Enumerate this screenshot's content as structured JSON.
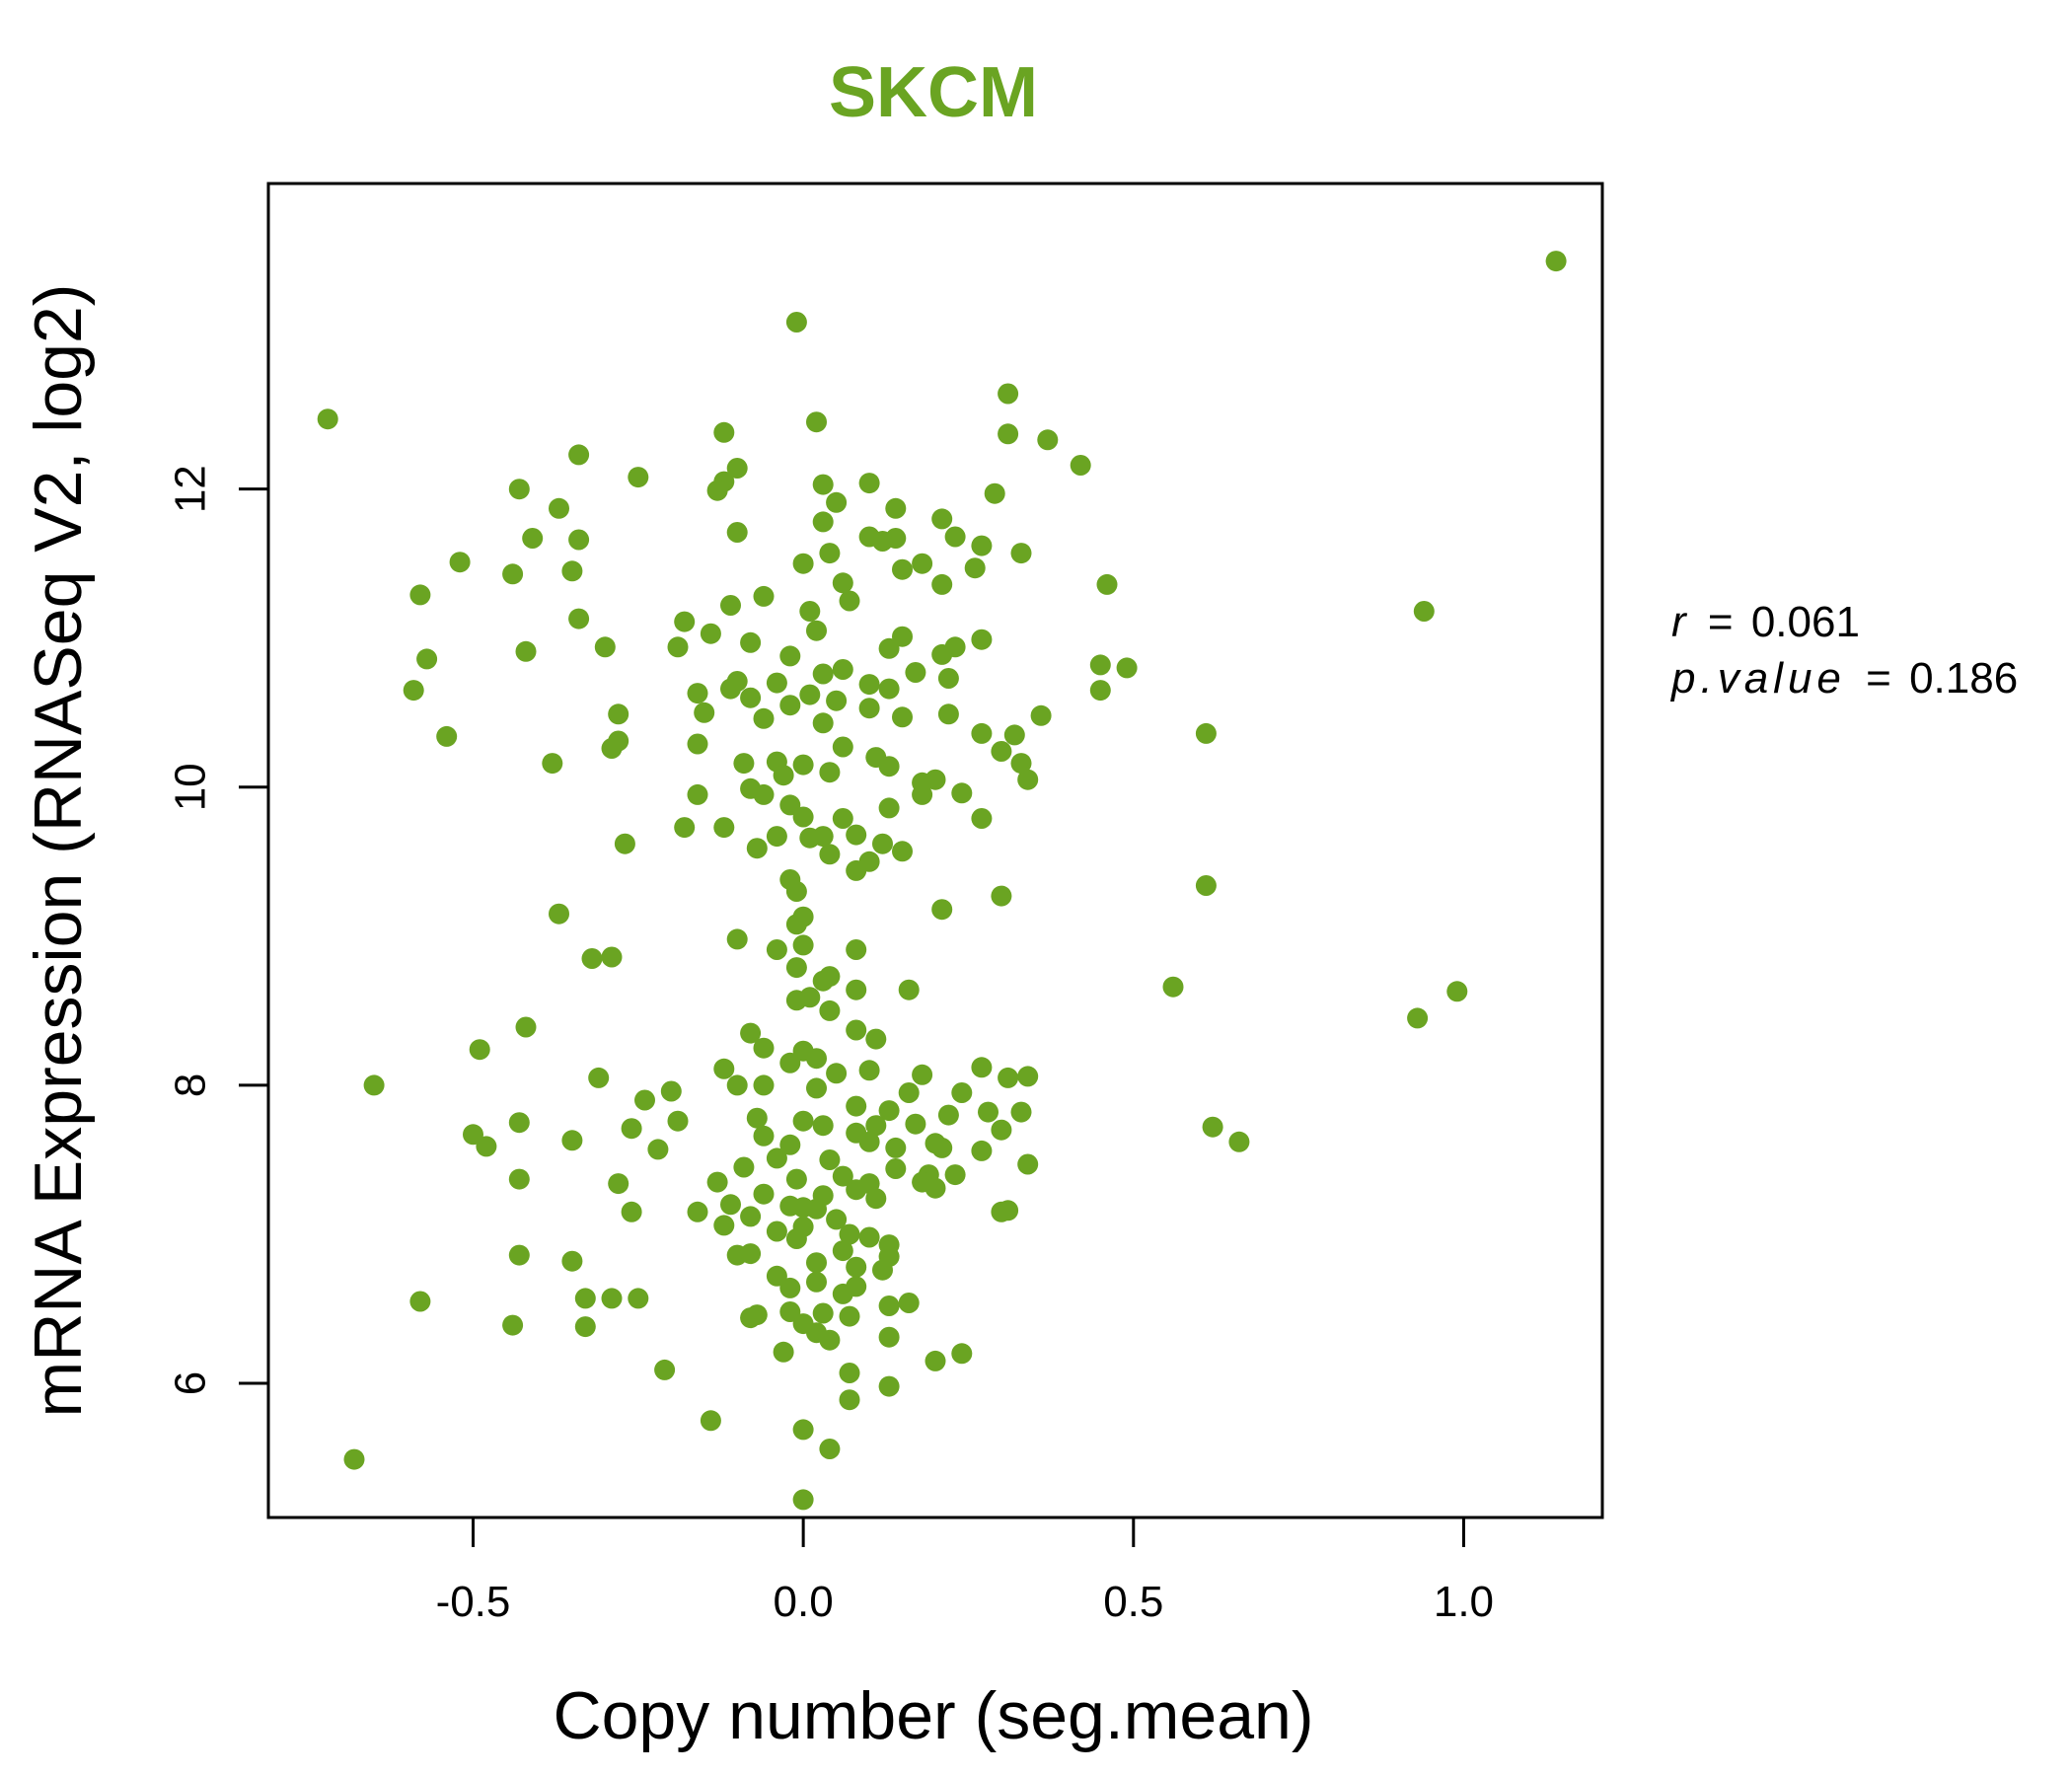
{
  "chart_data": {
    "type": "scatter",
    "title": "SKCM",
    "xlabel": "Copy number (seg.mean)",
    "ylabel": "mRNA Expression (RNASeq V2, log2)",
    "xlim": [
      -0.81,
      1.21
    ],
    "ylim": [
      5.1,
      14.05
    ],
    "xticks": [
      -0.5,
      0.0,
      0.5,
      1.0
    ],
    "xtick_labels": [
      "-0.5",
      "0.0",
      "0.5",
      "1.0"
    ],
    "yticks": [
      6,
      8,
      10,
      12
    ],
    "ytick_labels": [
      "6",
      "8",
      "10",
      "12"
    ],
    "grid": false,
    "legend": "none",
    "color": "#6aa422",
    "annotations": {
      "r_label": "r",
      "r_value": "0.061",
      "p_label": "p.value",
      "p_value": "0.186",
      "equals": "="
    },
    "points": [
      [
        1.14,
        13.53
      ],
      [
        -0.01,
        13.12
      ],
      [
        0.31,
        12.64
      ],
      [
        -0.72,
        12.47
      ],
      [
        0.02,
        12.45
      ],
      [
        -0.12,
        12.38
      ],
      [
        0.31,
        12.37
      ],
      [
        0.37,
        12.33
      ],
      [
        -0.34,
        12.23
      ],
      [
        0.42,
        12.16
      ],
      [
        -0.1,
        12.14
      ],
      [
        -0.25,
        12.08
      ],
      [
        -0.12,
        12.05
      ],
      [
        0.1,
        12.04
      ],
      [
        0.03,
        12.03
      ],
      [
        -0.43,
        12.0
      ],
      [
        -0.13,
        11.99
      ],
      [
        0.29,
        11.97
      ],
      [
        0.05,
        11.91
      ],
      [
        -0.37,
        11.87
      ],
      [
        0.14,
        11.87
      ],
      [
        0.21,
        11.8
      ],
      [
        0.03,
        11.78
      ],
      [
        -0.1,
        11.71
      ],
      [
        0.23,
        11.68
      ],
      [
        0.1,
        11.68
      ],
      [
        -0.41,
        11.67
      ],
      [
        0.14,
        11.67
      ],
      [
        0.12,
        11.65
      ],
      [
        -0.34,
        11.66
      ],
      [
        0.27,
        11.62
      ],
      [
        0.33,
        11.57
      ],
      [
        0.04,
        11.57
      ],
      [
        -0.52,
        11.51
      ],
      [
        0.0,
        11.5
      ],
      [
        0.18,
        11.5
      ],
      [
        0.15,
        11.46
      ],
      [
        0.26,
        11.47
      ],
      [
        -0.35,
        11.45
      ],
      [
        -0.44,
        11.43
      ],
      [
        0.06,
        11.37
      ],
      [
        0.21,
        11.36
      ],
      [
        0.46,
        11.36
      ],
      [
        -0.58,
        11.29
      ],
      [
        -0.06,
        11.28
      ],
      [
        0.07,
        11.25
      ],
      [
        -0.11,
        11.22
      ],
      [
        0.01,
        11.18
      ],
      [
        0.94,
        11.18
      ],
      [
        -0.34,
        11.13
      ],
      [
        -0.18,
        11.11
      ],
      [
        0.02,
        11.05
      ],
      [
        -0.14,
        11.03
      ],
      [
        0.15,
        11.01
      ],
      [
        -0.08,
        10.97
      ],
      [
        0.27,
        10.99
      ],
      [
        0.23,
        10.94
      ],
      [
        -0.19,
        10.94
      ],
      [
        -0.3,
        10.94
      ],
      [
        -0.42,
        10.91
      ],
      [
        0.13,
        10.93
      ],
      [
        0.21,
        10.89
      ],
      [
        -0.57,
        10.86
      ],
      [
        -0.02,
        10.88
      ],
      [
        0.45,
        10.82
      ],
      [
        0.49,
        10.8
      ],
      [
        0.17,
        10.77
      ],
      [
        0.06,
        10.79
      ],
      [
        0.03,
        10.76
      ],
      [
        0.22,
        10.73
      ],
      [
        -0.1,
        10.71
      ],
      [
        -0.04,
        10.7
      ],
      [
        0.1,
        10.69
      ],
      [
        -0.11,
        10.66
      ],
      [
        0.13,
        10.66
      ],
      [
        -0.59,
        10.65
      ],
      [
        0.45,
        10.65
      ],
      [
        -0.16,
        10.63
      ],
      [
        0.01,
        10.62
      ],
      [
        -0.08,
        10.6
      ],
      [
        0.05,
        10.58
      ],
      [
        -0.02,
        10.55
      ],
      [
        0.1,
        10.53
      ],
      [
        -0.15,
        10.5
      ],
      [
        0.22,
        10.49
      ],
      [
        -0.28,
        10.49
      ],
      [
        0.36,
        10.48
      ],
      [
        0.15,
        10.47
      ],
      [
        -0.06,
        10.46
      ],
      [
        0.03,
        10.43
      ],
      [
        0.27,
        10.36
      ],
      [
        -0.54,
        10.34
      ],
      [
        0.61,
        10.36
      ],
      [
        0.32,
        10.35
      ],
      [
        -0.28,
        10.31
      ],
      [
        -0.16,
        10.29
      ],
      [
        0.06,
        10.27
      ],
      [
        -0.29,
        10.26
      ],
      [
        0.3,
        10.24
      ],
      [
        0.11,
        10.2
      ],
      [
        -0.04,
        10.17
      ],
      [
        -0.38,
        10.16
      ],
      [
        -0.09,
        10.16
      ],
      [
        0.33,
        10.16
      ],
      [
        0.0,
        10.15
      ],
      [
        0.13,
        10.14
      ],
      [
        0.04,
        10.1
      ],
      [
        0.2,
        10.05
      ],
      [
        0.34,
        10.05
      ],
      [
        0.18,
        10.03
      ],
      [
        -0.03,
        10.08
      ],
      [
        -0.08,
        9.99
      ],
      [
        0.24,
        9.96
      ],
      [
        -0.16,
        9.95
      ],
      [
        0.18,
        9.95
      ],
      [
        -0.06,
        9.95
      ],
      [
        -0.02,
        9.88
      ],
      [
        0.13,
        9.86
      ],
      [
        0.0,
        9.8
      ],
      [
        0.06,
        9.79
      ],
      [
        0.27,
        9.79
      ],
      [
        -0.18,
        9.73
      ],
      [
        -0.12,
        9.73
      ],
      [
        0.08,
        9.68
      ],
      [
        -0.04,
        9.67
      ],
      [
        0.01,
        9.66
      ],
      [
        0.03,
        9.67
      ],
      [
        -0.27,
        9.62
      ],
      [
        0.12,
        9.62
      ],
      [
        -0.07,
        9.59
      ],
      [
        0.15,
        9.57
      ],
      [
        0.04,
        9.55
      ],
      [
        0.1,
        9.5
      ],
      [
        0.08,
        9.44
      ],
      [
        -0.02,
        9.38
      ],
      [
        0.61,
        9.34
      ],
      [
        -0.01,
        9.3
      ],
      [
        0.3,
        9.27
      ],
      [
        0.21,
        9.18
      ],
      [
        -0.37,
        9.15
      ],
      [
        0.0,
        9.13
      ],
      [
        -0.01,
        9.08
      ],
      [
        -0.1,
        8.98
      ],
      [
        0.0,
        8.94
      ],
      [
        -0.04,
        8.91
      ],
      [
        0.08,
        8.91
      ],
      [
        -0.29,
        8.86
      ],
      [
        -0.32,
        8.85
      ],
      [
        -0.01,
        8.79
      ],
      [
        0.04,
        8.73
      ],
      [
        0.56,
        8.66
      ],
      [
        0.03,
        8.7
      ],
      [
        0.16,
        8.64
      ],
      [
        0.08,
        8.64
      ],
      [
        0.99,
        8.63
      ],
      [
        0.01,
        8.59
      ],
      [
        -0.01,
        8.57
      ],
      [
        0.04,
        8.5
      ],
      [
        0.93,
        8.45
      ],
      [
        -0.42,
        8.39
      ],
      [
        0.08,
        8.37
      ],
      [
        -0.08,
        8.35
      ],
      [
        0.11,
        8.31
      ],
      [
        -0.06,
        8.25
      ],
      [
        -0.49,
        8.24
      ],
      [
        0.0,
        8.23
      ],
      [
        0.02,
        8.18
      ],
      [
        -0.02,
        8.15
      ],
      [
        0.27,
        8.12
      ],
      [
        -0.12,
        8.11
      ],
      [
        0.1,
        8.1
      ],
      [
        0.05,
        8.08
      ],
      [
        0.18,
        8.07
      ],
      [
        0.34,
        8.06
      ],
      [
        0.31,
        8.05
      ],
      [
        -0.31,
        8.05
      ],
      [
        -0.65,
        8.0
      ],
      [
        -0.1,
        8.0
      ],
      [
        -0.06,
        8.0
      ],
      [
        0.02,
        7.98
      ],
      [
        -0.2,
        7.96
      ],
      [
        0.16,
        7.95
      ],
      [
        0.24,
        7.95
      ],
      [
        -0.24,
        7.9
      ],
      [
        0.08,
        7.86
      ],
      [
        0.13,
        7.83
      ],
      [
        0.28,
        7.82
      ],
      [
        0.33,
        7.82
      ],
      [
        0.22,
        7.8
      ],
      [
        -0.07,
        7.78
      ],
      [
        -0.19,
        7.76
      ],
      [
        0.0,
        7.76
      ],
      [
        -0.43,
        7.75
      ],
      [
        0.17,
        7.74
      ],
      [
        0.11,
        7.73
      ],
      [
        0.03,
        7.73
      ],
      [
        -0.26,
        7.71
      ],
      [
        0.3,
        7.7
      ],
      [
        0.08,
        7.68
      ],
      [
        -0.5,
        7.67
      ],
      [
        -0.06,
        7.66
      ],
      [
        -0.35,
        7.63
      ],
      [
        0.66,
        7.62
      ],
      [
        0.62,
        7.72
      ],
      [
        0.2,
        7.61
      ],
      [
        0.1,
        7.62
      ],
      [
        -0.02,
        7.6
      ],
      [
        0.27,
        7.56
      ],
      [
        -0.48,
        7.59
      ],
      [
        0.14,
        7.58
      ],
      [
        -0.22,
        7.57
      ],
      [
        0.21,
        7.58
      ],
      [
        -0.04,
        7.51
      ],
      [
        0.04,
        7.5
      ],
      [
        0.34,
        7.47
      ],
      [
        -0.09,
        7.45
      ],
      [
        0.14,
        7.44
      ],
      [
        0.19,
        7.4
      ],
      [
        0.06,
        7.39
      ],
      [
        0.23,
        7.4
      ],
      [
        -0.43,
        7.37
      ],
      [
        -0.01,
        7.37
      ],
      [
        -0.13,
        7.35
      ],
      [
        0.18,
        7.35
      ],
      [
        0.1,
        7.34
      ],
      [
        -0.28,
        7.34
      ],
      [
        0.2,
        7.31
      ],
      [
        0.08,
        7.3
      ],
      [
        -0.06,
        7.27
      ],
      [
        0.03,
        7.26
      ],
      [
        0.11,
        7.24
      ],
      [
        -0.11,
        7.2
      ],
      [
        -0.02,
        7.19
      ],
      [
        0.0,
        7.18
      ],
      [
        0.02,
        7.17
      ],
      [
        -0.26,
        7.15
      ],
      [
        0.3,
        7.15
      ],
      [
        0.31,
        7.16
      ],
      [
        -0.16,
        7.15
      ],
      [
        -0.08,
        7.12
      ],
      [
        0.05,
        7.1
      ],
      [
        -0.12,
        7.06
      ],
      [
        0.0,
        7.05
      ],
      [
        -0.04,
        7.02
      ],
      [
        0.07,
        7.0
      ],
      [
        0.1,
        6.98
      ],
      [
        -0.01,
        6.97
      ],
      [
        0.13,
        6.93
      ],
      [
        0.06,
        6.89
      ],
      [
        -0.43,
        6.86
      ],
      [
        -0.1,
        6.86
      ],
      [
        -0.08,
        6.87
      ],
      [
        0.13,
        6.85
      ],
      [
        -0.35,
        6.82
      ],
      [
        0.02,
        6.81
      ],
      [
        0.08,
        6.78
      ],
      [
        0.12,
        6.76
      ],
      [
        -0.04,
        6.72
      ],
      [
        0.02,
        6.68
      ],
      [
        0.08,
        6.65
      ],
      [
        -0.02,
        6.64
      ],
      [
        0.06,
        6.6
      ],
      [
        -0.33,
        6.57
      ],
      [
        -0.29,
        6.57
      ],
      [
        -0.25,
        6.57
      ],
      [
        -0.58,
        6.55
      ],
      [
        0.16,
        6.54
      ],
      [
        0.13,
        6.52
      ],
      [
        -0.02,
        6.48
      ],
      [
        0.03,
        6.47
      ],
      [
        -0.07,
        6.46
      ],
      [
        0.07,
        6.45
      ],
      [
        -0.08,
        6.44
      ],
      [
        -0.44,
        6.39
      ],
      [
        -0.33,
        6.38
      ],
      [
        0.0,
        6.4
      ],
      [
        0.02,
        6.34
      ],
      [
        0.13,
        6.31
      ],
      [
        0.04,
        6.29
      ],
      [
        -0.03,
        6.21
      ],
      [
        0.24,
        6.2
      ],
      [
        0.2,
        6.15
      ],
      [
        -0.21,
        6.09
      ],
      [
        0.07,
        6.07
      ],
      [
        0.13,
        5.98
      ],
      [
        0.07,
        5.89
      ],
      [
        -0.14,
        5.75
      ],
      [
        0.0,
        5.69
      ],
      [
        0.04,
        5.56
      ],
      [
        -0.68,
        5.49
      ],
      [
        0.0,
        5.22
      ]
    ]
  }
}
